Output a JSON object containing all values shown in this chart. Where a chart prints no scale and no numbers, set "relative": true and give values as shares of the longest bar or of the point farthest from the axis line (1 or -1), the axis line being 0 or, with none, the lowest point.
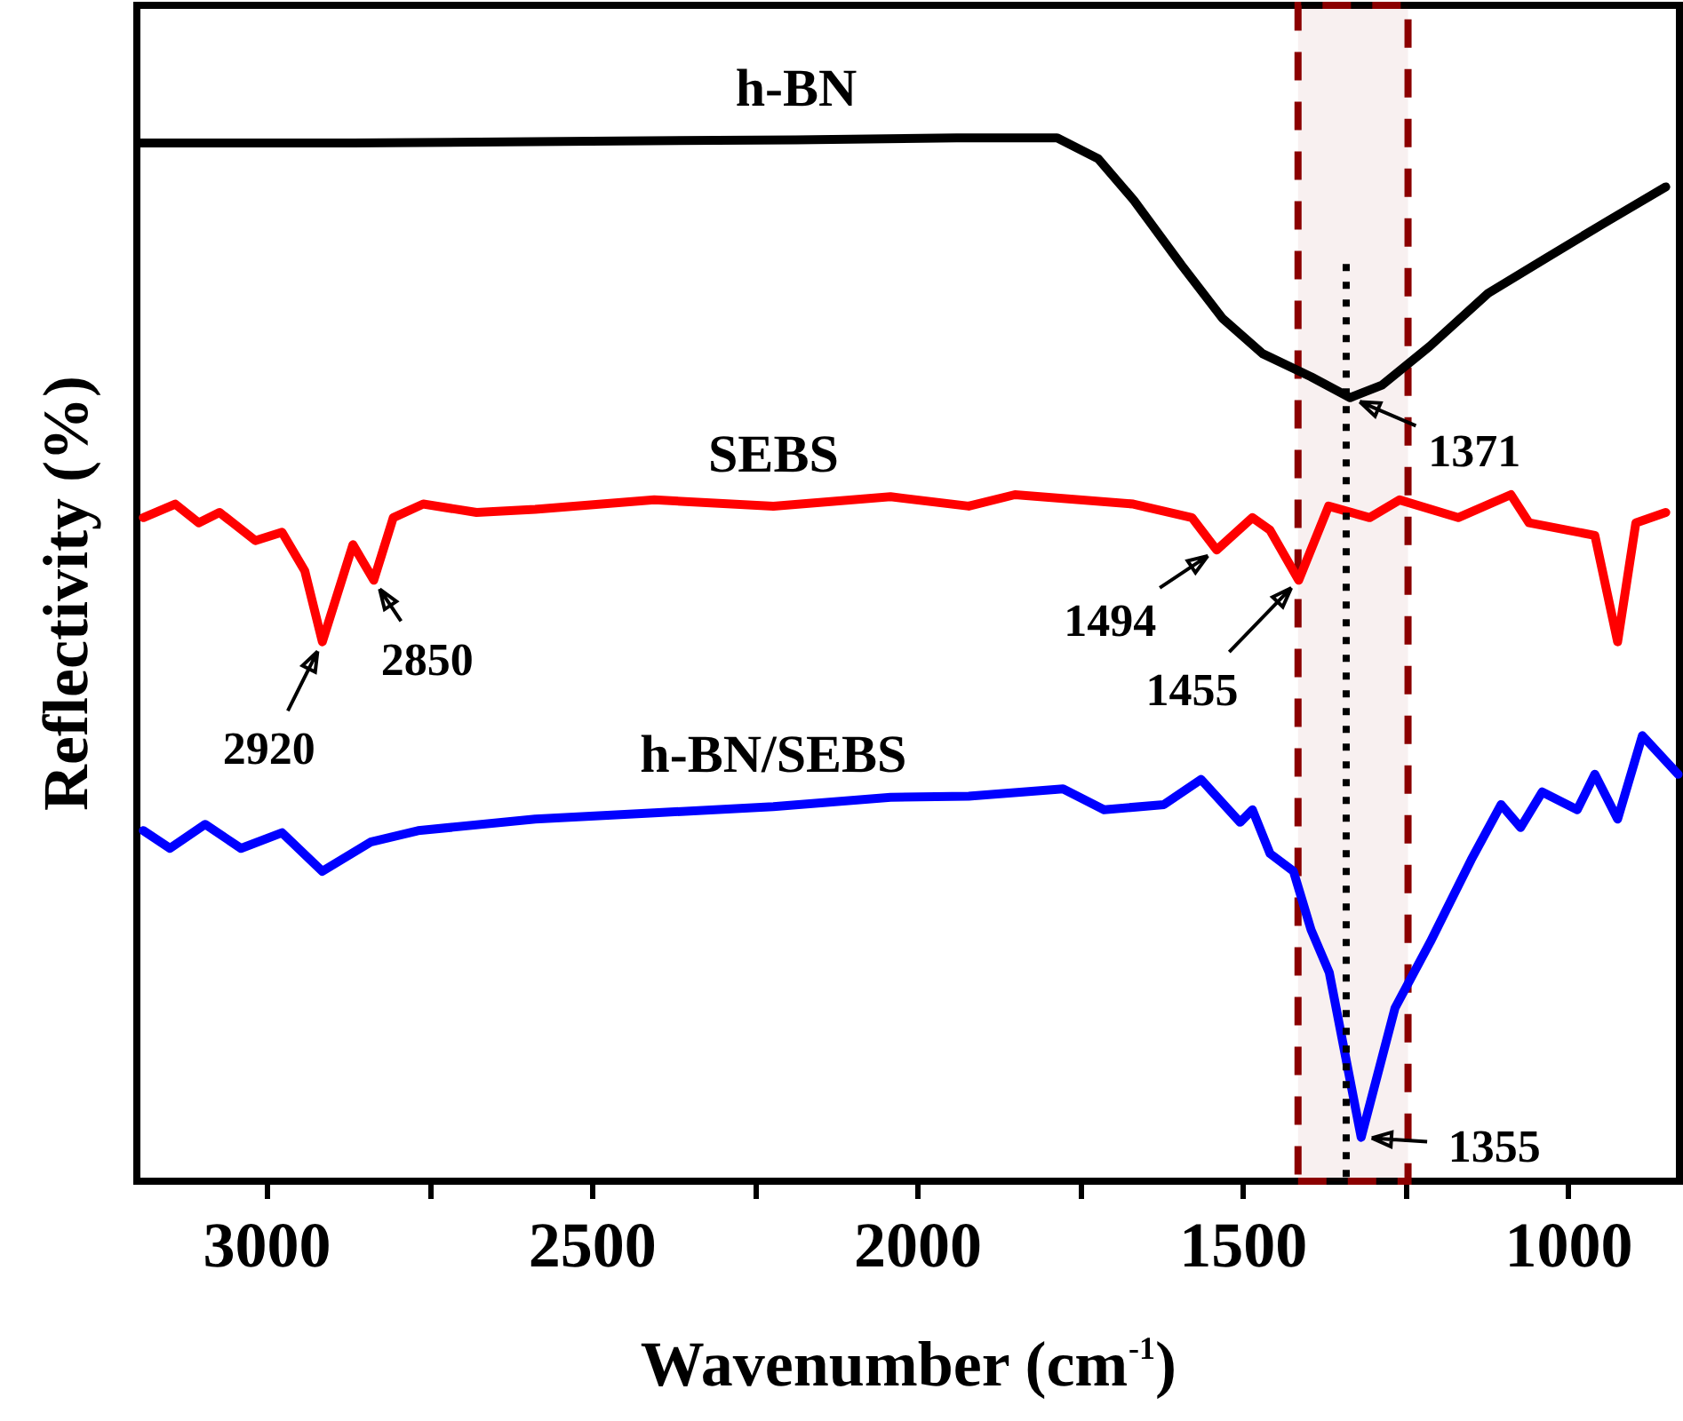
{
  "chart_data": {
    "type": "line",
    "xlabel": "Wavenumber (cm$^{-1}$)",
    "ylabel": "Reflectivity (%)",
    "relative": true,
    "tick_labels": "x",
    "xlim": [
      3200,
      830
    ],
    "xticks": [
      3000,
      {
        "value": 2750,
        "label": null
      },
      2500,
      {
        "value": 2250,
        "label": null
      },
      2000,
      {
        "value": 1750,
        "label": null
      },
      1500,
      {
        "value": 1250,
        "label": null
      },
      1000
    ],
    "series": [
      {
        "name": "h-BN",
        "color": "#000000",
        "x": [
          3196,
          2868,
          2459,
          2187,
          1941,
          1786,
          1723,
          1668,
          1595,
          1532,
          1470,
          1396,
          1336,
          1287,
          1214,
          1124,
          1034,
          941,
          851
        ],
        "values": [
          0.995,
          0.995,
          0.997,
          0.998,
          1.0,
          1.0,
          0.98,
          0.94,
          0.878,
          0.827,
          0.793,
          0.771,
          0.751,
          0.763,
          0.8,
          0.851,
          0.885,
          0.92,
          0.953
        ]
      },
      {
        "name": "SEBS",
        "color": "#ff0000",
        "x": [
          3190,
          3141,
          3105,
          3073,
          3018,
          2977,
          2942,
          2915,
          2868,
          2836,
          2806,
          2760,
          2678,
          2588,
          2405,
          2222,
          2042,
          1922,
          1851,
          1669,
          1579,
          1541,
          1486,
          1459,
          1415,
          1369,
          1306,
          1260,
          1170,
          1089,
          1061,
          960,
          925,
          897,
          851
        ],
        "values": [
          0.636,
          0.649,
          0.631,
          0.641,
          0.614,
          0.622,
          0.585,
          0.517,
          0.61,
          0.576,
          0.636,
          0.649,
          0.641,
          0.644,
          0.653,
          0.647,
          0.656,
          0.647,
          0.658,
          0.649,
          0.636,
          0.605,
          0.636,
          0.624,
          0.576,
          0.647,
          0.636,
          0.653,
          0.636,
          0.658,
          0.631,
          0.619,
          0.517,
          0.631,
          0.641
        ]
      },
      {
        "name": "h-BN/SEBS",
        "color": "#0000ff",
        "x": [
          3190,
          3149,
          3095,
          3040,
          2977,
          2915,
          2841,
          2768,
          2588,
          2405,
          2222,
          2042,
          1922,
          1777,
          1714,
          1622,
          1565,
          1505,
          1486,
          1459,
          1423,
          1396,
          1368,
          1319,
          1267,
          1213,
          1150,
          1104,
          1074,
          1041,
          987,
          960,
          925,
          887,
          832
        ],
        "values": [
          0.336,
          0.319,
          0.342,
          0.319,
          0.334,
          0.297,
          0.325,
          0.336,
          0.347,
          0.353,
          0.359,
          0.368,
          0.369,
          0.376,
          0.356,
          0.361,
          0.385,
          0.344,
          0.356,
          0.314,
          0.297,
          0.241,
          0.2,
          0.042,
          0.166,
          0.229,
          0.308,
          0.361,
          0.339,
          0.373,
          0.356,
          0.39,
          0.347,
          0.427,
          0.39
        ]
      }
    ],
    "annotations": [
      {
        "text": "1371",
        "x": 1336,
        "y": 0.751
      },
      {
        "text": "1494",
        "x": 1541,
        "y": 0.605
      },
      {
        "text": "1455",
        "x": 1415,
        "y": 0.576
      },
      {
        "text": "2920",
        "x": 2915,
        "y": 0.517
      },
      {
        "text": "2850",
        "x": 2836,
        "y": 0.576
      },
      {
        "text": "1355",
        "x": 1319,
        "y": 0.042
      }
    ],
    "ref_lines": [
      {
        "axis": "x",
        "value": 1342,
        "color": "#000000",
        "line_style": "dotted"
      }
    ],
    "bands": [
      {
        "axis": "x",
        "from": 1416,
        "to": 1247,
        "color": "#8b0000"
      }
    ],
    "line_style": "solid",
    "marker": "none",
    "grid": false,
    "legend": false
  }
}
